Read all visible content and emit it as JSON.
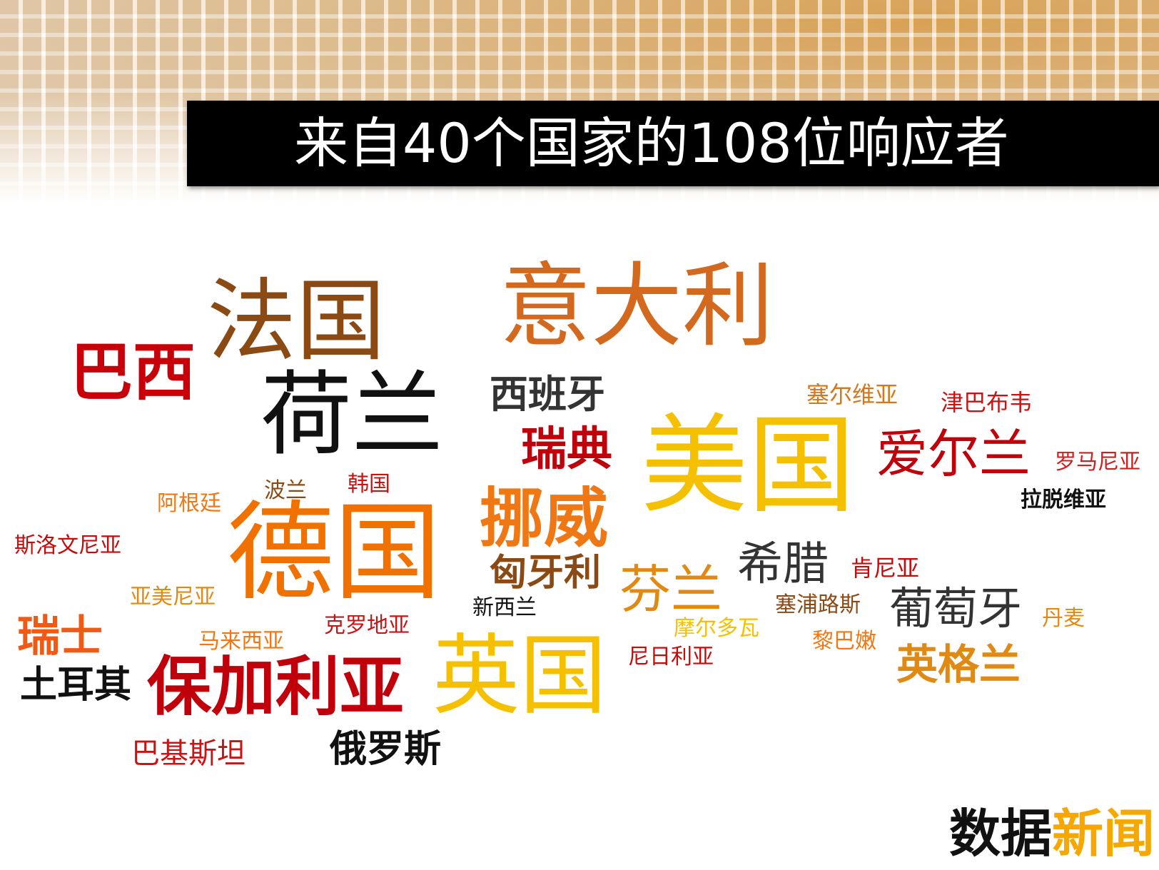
{
  "header": {
    "title": "来自40个国家的108位响应者"
  },
  "word_cloud": {
    "words": [
      {
        "text": "法国",
        "color": "#8b4a14"
      },
      {
        "text": "意大利",
        "color": "#d2691e"
      },
      {
        "text": "巴西",
        "color": "#c8000a"
      },
      {
        "text": "荷兰",
        "color": "#111111"
      },
      {
        "text": "西班牙",
        "color": "#333333"
      },
      {
        "text": "塞尔维亚",
        "color": "#d2781e"
      },
      {
        "text": "津巴布韦",
        "color": "#c81414"
      },
      {
        "text": "瑞典",
        "color": "#c0000a"
      },
      {
        "text": "美国",
        "color": "#f5c000"
      },
      {
        "text": "爱尔兰",
        "color": "#c0000a"
      },
      {
        "text": "罗马尼亚",
        "color": "#d21e1e"
      },
      {
        "text": "拉脱维亚",
        "color": "#111111"
      },
      {
        "text": "阿根廷",
        "color": "#f07814"
      },
      {
        "text": "波兰",
        "color": "#8b4a14"
      },
      {
        "text": "韩国",
        "color": "#c81414"
      },
      {
        "text": "挪威",
        "color": "#f07814"
      },
      {
        "text": "德国",
        "color": "#f07000"
      },
      {
        "text": "斯洛文尼亚",
        "color": "#c80a0a"
      },
      {
        "text": "匈牙利",
        "color": "#8b4a14"
      },
      {
        "text": "希腊",
        "color": "#333333"
      },
      {
        "text": "肯尼亚",
        "color": "#c80a0a"
      },
      {
        "text": "芬兰",
        "color": "#e08a14"
      },
      {
        "text": "亚美尼亚",
        "color": "#e08a14"
      },
      {
        "text": "新西兰",
        "color": "#111111"
      },
      {
        "text": "塞浦路斯",
        "color": "#8b4a14"
      },
      {
        "text": "葡萄牙",
        "color": "#333333"
      },
      {
        "text": "丹麦",
        "color": "#e08a14"
      },
      {
        "text": "瑞士",
        "color": "#f05a14"
      },
      {
        "text": "马来西亚",
        "color": "#f07814"
      },
      {
        "text": "克罗地亚",
        "color": "#c81414"
      },
      {
        "text": "摩尔多瓦",
        "color": "#f5c000"
      },
      {
        "text": "黎巴嫩",
        "color": "#f07814"
      },
      {
        "text": "尼日利亚",
        "color": "#c80a0a"
      },
      {
        "text": "英国",
        "color": "#f5c000"
      },
      {
        "text": "英格兰",
        "color": "#e08a14"
      },
      {
        "text": "土耳其",
        "color": "#111111"
      },
      {
        "text": "保加利亚",
        "color": "#c0000a"
      },
      {
        "text": "巴基斯坦",
        "color": "#c81414"
      },
      {
        "text": "俄罗斯",
        "color": "#111111"
      }
    ]
  },
  "brand": {
    "part1": "数据",
    "part2": "新闻",
    "color1": "#111111",
    "color2": "#f6a800"
  }
}
